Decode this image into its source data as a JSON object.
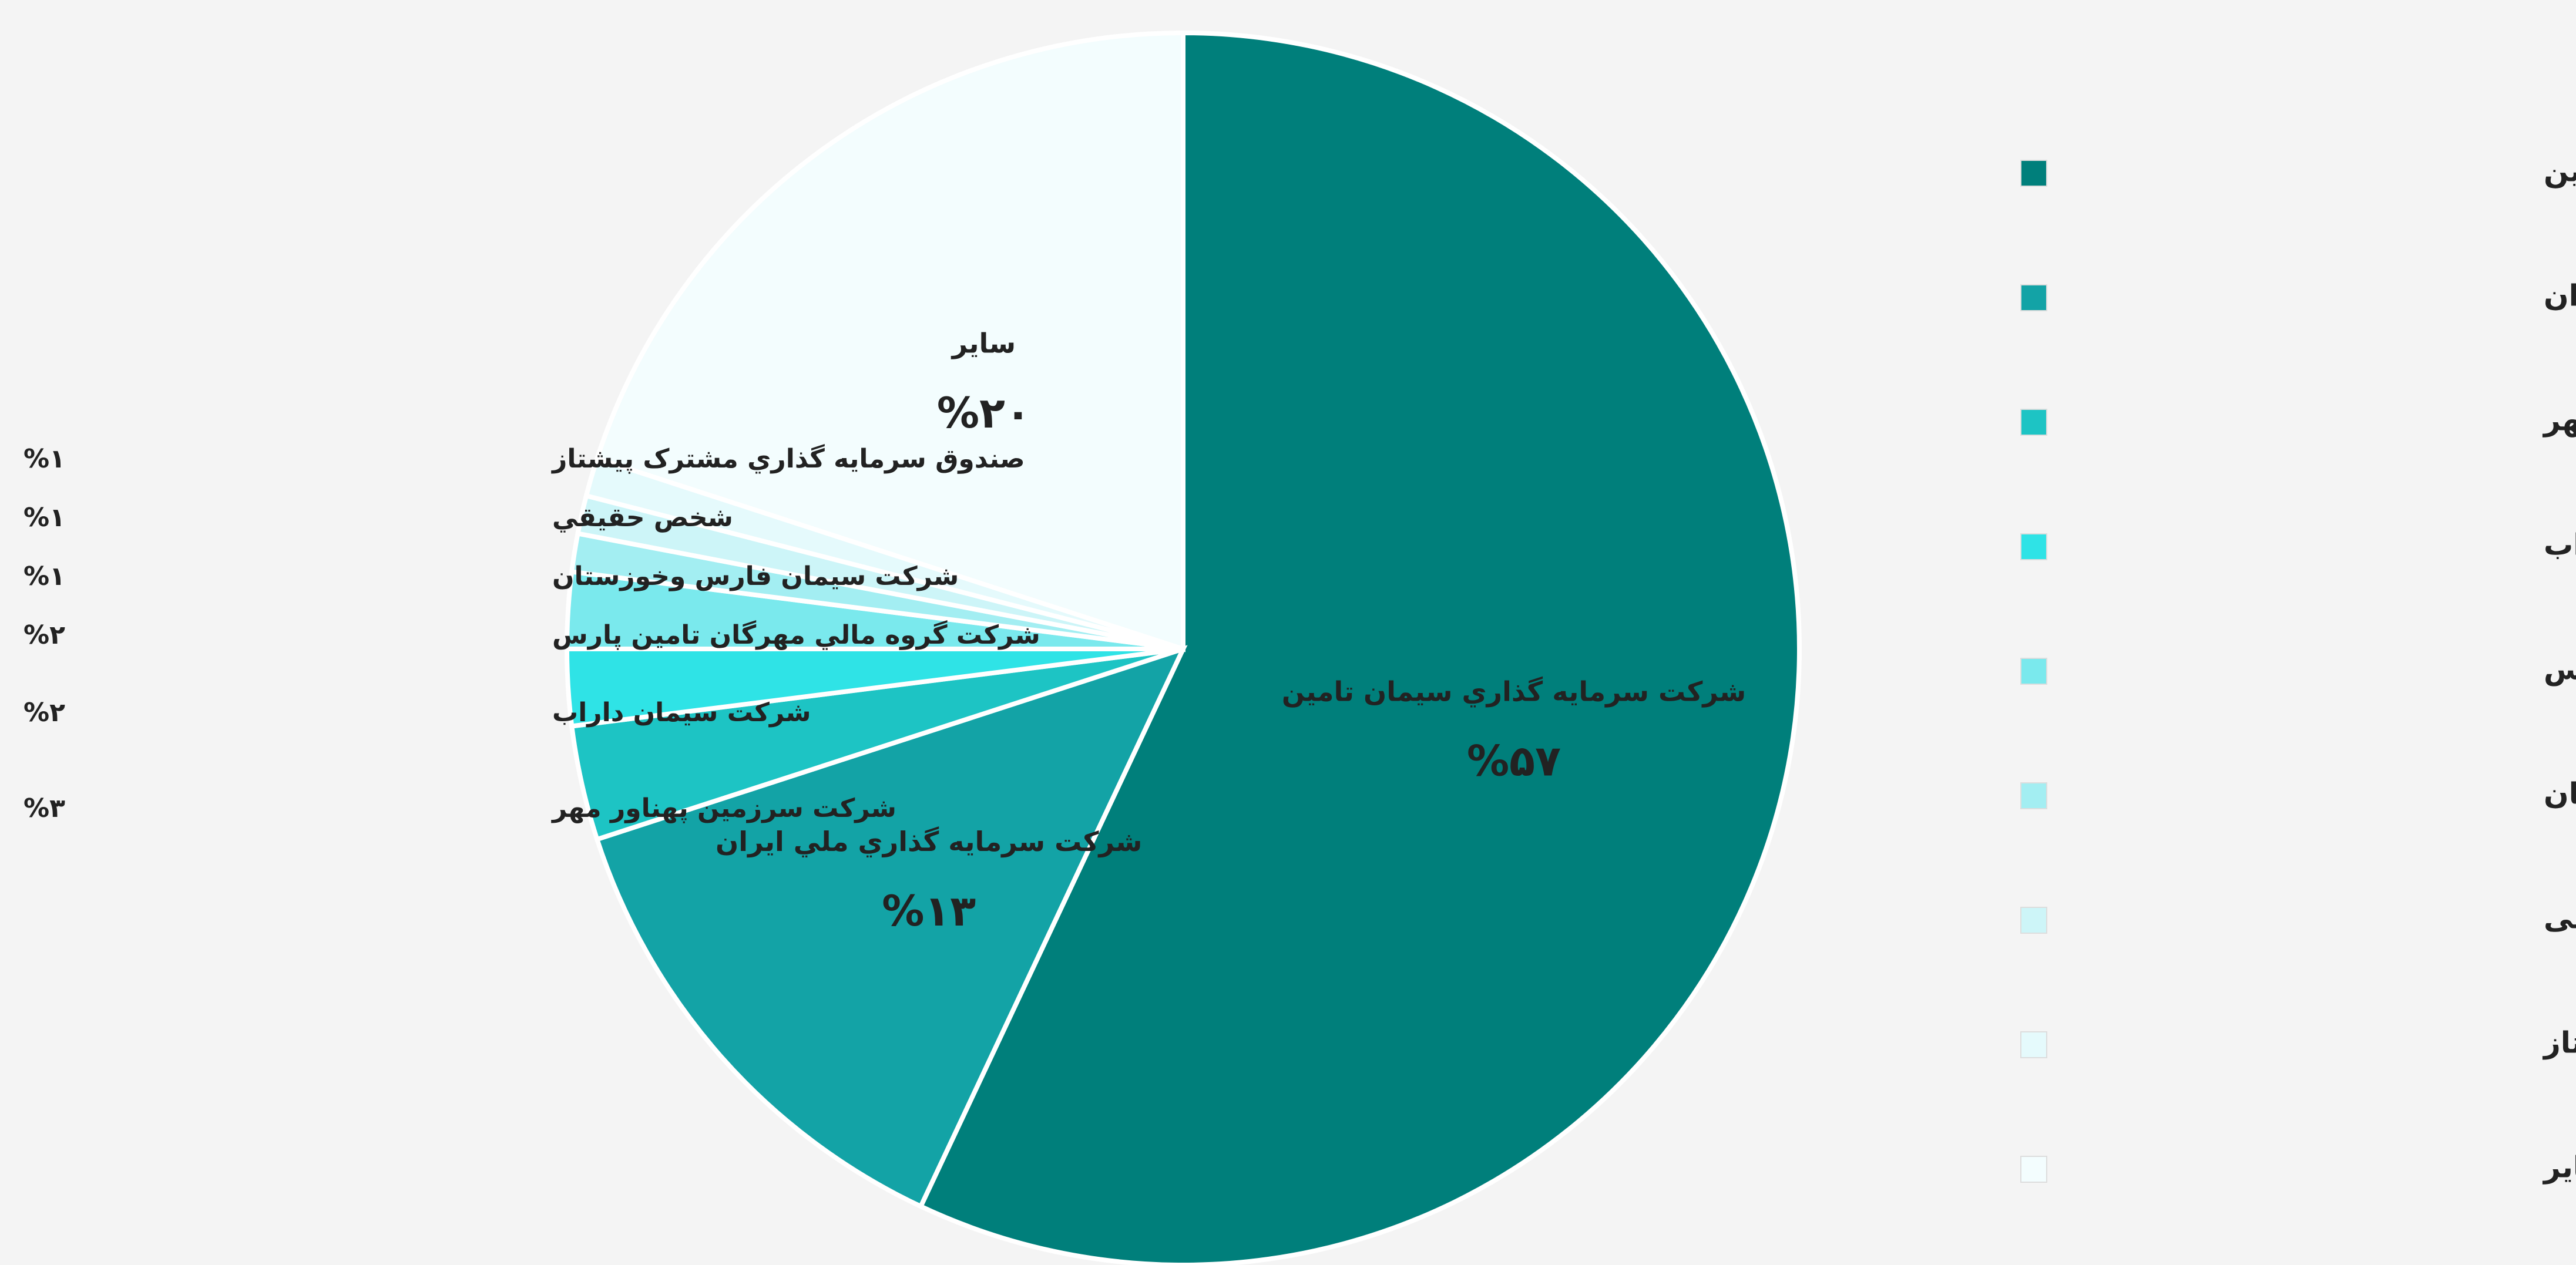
{
  "chart_data": {
    "type": "pie",
    "labels": [
      "شرکت سرمايه گذاري سيمان تامين",
      "شرکت سرمايه گذاري ملي ايران",
      "شرکت سرزمين پهناور مهر",
      "شرکت سيمان داراب",
      "شرکت گروه مالي مهرگان تامين پارس",
      "شرکت سيمان فارس وخوزستان",
      "شخص حقيقي",
      "صندوق سرمايه گذاري مشترک پيشتاز",
      "ساير"
    ],
    "values": [
      57,
      13,
      3,
      2,
      2,
      1,
      1,
      1,
      20
    ],
    "value_labels": [
      "%۵۷",
      "%۱۳",
      "%۳",
      "%۲",
      "%۲",
      "%۱",
      "%۱",
      "%۱",
      "%۲۰"
    ],
    "colors": [
      "#007f7b",
      "#13a3a6",
      "#1dc4c4",
      "#2fe3e6",
      "#7ae9ed",
      "#a3eef2",
      "#cdf5f8",
      "#e5fafc",
      "#f3fdfe"
    ],
    "legend": [
      "شرکت سرمایه‌گذاری سیمان تامین",
      "شرکت سرمایه‌گذاری ملی ایران",
      "شرکت سرزمین پهناور مهر",
      "شرکت سیمان داراب",
      "شرکت گروه مالی مهرگان تامین پارس",
      "شرکت سیمان فارس و خوزستان",
      "شخص حقیقی",
      "صندوق سرمایه‌گذاری مشترک پیشتاز",
      "سایر"
    ],
    "legend_position": "right"
  }
}
